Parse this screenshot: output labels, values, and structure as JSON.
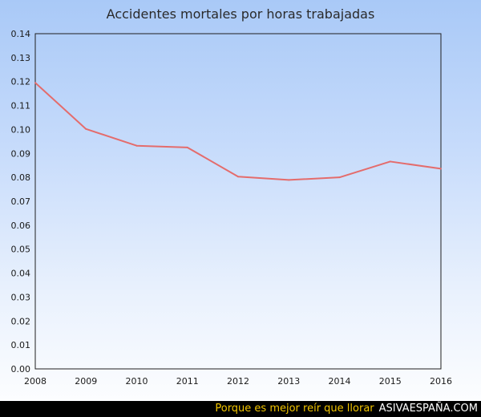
{
  "chart_data": {
    "type": "line",
    "title": "Accidentes mortales por horas trabajadas",
    "xlabel": "",
    "ylabel": "",
    "x": [
      "2008",
      "2009",
      "2010",
      "2011",
      "2012",
      "2013",
      "2014",
      "2015",
      "2016"
    ],
    "series": [
      {
        "values": [
          0.1195,
          0.1002,
          0.0932,
          0.0925,
          0.0803,
          0.0789,
          0.08,
          0.0866,
          0.0836
        ]
      }
    ],
    "ylim": [
      0,
      0.14
    ],
    "yticks": [
      "0.00",
      "0.01",
      "0.02",
      "0.03",
      "0.04",
      "0.05",
      "0.06",
      "0.07",
      "0.08",
      "0.09",
      "0.10",
      "0.11",
      "0.12",
      "0.13",
      "0.14"
    ],
    "grid": false,
    "legend": "none",
    "colors": {
      "line": "#e46c6c",
      "frame": "#1f1f1f"
    }
  },
  "footer": {
    "tagline": "Porque es mejor reír que llorar",
    "site": "ASIVAESPAÑA.COM"
  }
}
